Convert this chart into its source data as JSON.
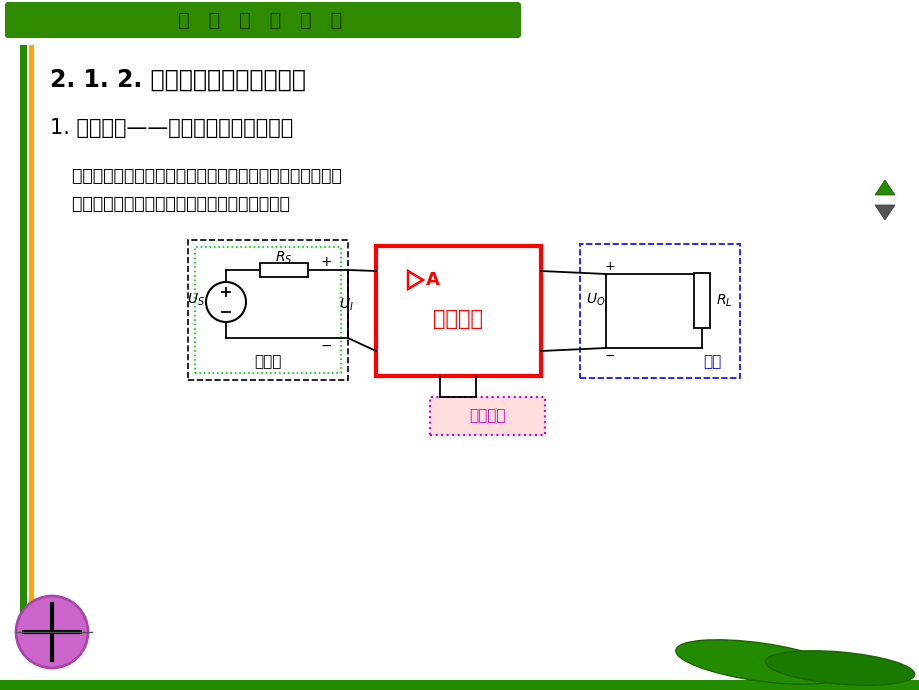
{
  "bg_color": "#ffffff",
  "header_bg": "#2e8b00",
  "header_text": "模   拟   电   子   技   术",
  "header_text_color": "#1a3a00",
  "title": "2. 1. 2. 放大电路的主要技术指标",
  "subtitle": "1. 放大倍数——表示放大器的放大能力",
  "body_line1": "    根据放大电路输入信号的条件和对输出信号的要求，放大器",
  "body_line2": "    可分为四种类型，所以有四种放大倍数的定义。",
  "sig_label": "信号源",
  "amp_label": "放大电路",
  "load_label": "负载",
  "dc_label": "直流电源"
}
